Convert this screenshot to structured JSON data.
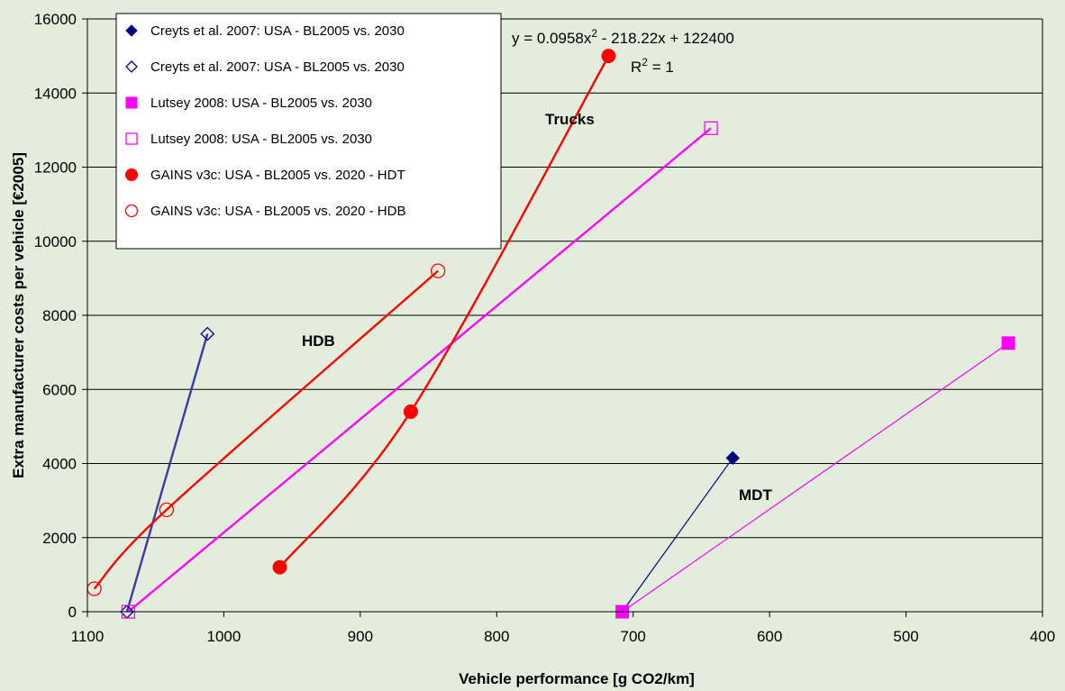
{
  "chart_data": {
    "type": "scatter",
    "title": "",
    "xlabel": "Vehicle performance [g CO2/km]",
    "ylabel": "Extra manufacturer costs per vehicle [€2005]",
    "xlim": [
      1100,
      400
    ],
    "ylim": [
      0,
      16000
    ],
    "x_reversed": true,
    "xticks": [
      1100,
      1000,
      900,
      800,
      700,
      600,
      500,
      400
    ],
    "yticks": [
      0,
      2000,
      4000,
      6000,
      8000,
      10000,
      12000,
      14000,
      16000
    ],
    "grid": "horizontal",
    "legend_position": "top-left",
    "series": [
      {
        "name": "Creyts et al. 2007: USA - BL2005 vs. 2030",
        "marker": "diamond",
        "filled": true,
        "color": "#000080",
        "points": [
          [
            708,
            0
          ],
          [
            627,
            4150
          ]
        ]
      },
      {
        "name": "Creyts et al. 2007: USA - BL2005 vs. 2030",
        "marker": "diamond",
        "filled": false,
        "color": "#000080",
        "points": [
          [
            1071,
            0
          ],
          [
            1012,
            7500
          ]
        ]
      },
      {
        "name": "Lutsey 2008: USA - BL2005 vs. 2030",
        "marker": "square",
        "filled": true,
        "color": "#ff00ff",
        "points": [
          [
            708,
            0
          ],
          [
            425,
            7250
          ]
        ]
      },
      {
        "name": "Lutsey 2008: USA - BL2005 vs. 2030",
        "marker": "square",
        "filled": false,
        "color": "#ff00ff",
        "points": [
          [
            1070,
            0
          ],
          [
            643,
            13050
          ]
        ]
      },
      {
        "name": "GAINS v3c: USA - BL2005 vs. 2020 - HDT",
        "marker": "circle",
        "filled": true,
        "color": "#ff0000",
        "points": [
          [
            959,
            1200
          ],
          [
            863,
            5400
          ],
          [
            718,
            15000
          ]
        ]
      },
      {
        "name": "GAINS v3c: USA - BL2005 vs. 2020 - HDB",
        "marker": "circle",
        "filled": false,
        "color": "#ff0000",
        "points": [
          [
            1095,
            620
          ],
          [
            1042,
            2750
          ],
          [
            843,
            9200
          ]
        ]
      }
    ],
    "lines": [
      {
        "series": 0,
        "color": "#000080",
        "width": 1.2,
        "smooth": false
      },
      {
        "series": 1,
        "color": "#3a3aa8",
        "width": 2.4,
        "smooth": false
      },
      {
        "series": 2,
        "color": "#ff00ff",
        "width": 1.2,
        "smooth": false
      },
      {
        "series": 3,
        "color": "#ff00ff",
        "width": 2.4,
        "smooth": false
      },
      {
        "series": 4,
        "color": "#ff0000",
        "width": 2.4,
        "smooth": true
      },
      {
        "series": 5,
        "color": "#ff0000",
        "width": 2.4,
        "smooth": true
      }
    ],
    "annotations": {
      "trucks": "Trucks",
      "hdb": "HDB",
      "mdt": "MDT",
      "equation": {
        "prefix": "y = 0.0958x",
        "exp": "2",
        "rest": " - 218.22x + 122400"
      },
      "r2": {
        "prefix": "R",
        "exp": "2",
        "rest": " = 1"
      }
    }
  }
}
